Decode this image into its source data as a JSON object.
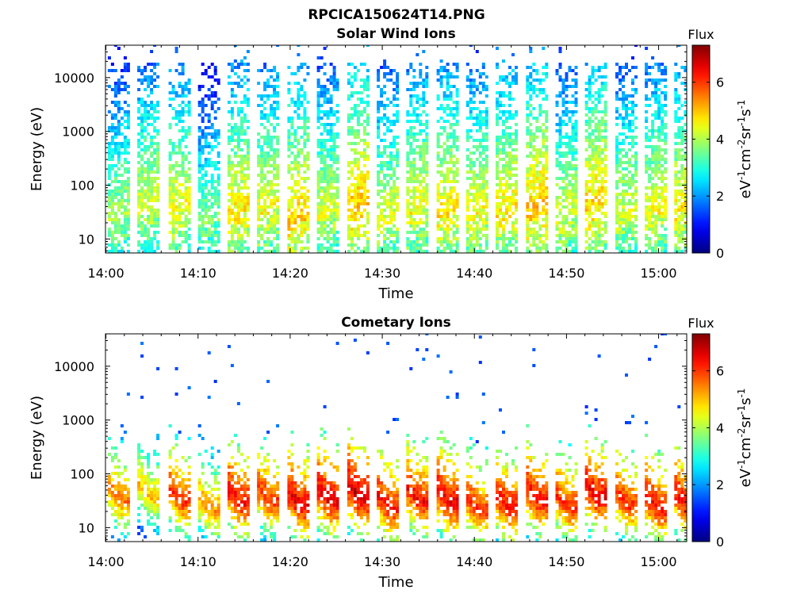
{
  "figure_title": "RPCICA150624T14.PNG",
  "chart_data": [
    {
      "type": "heatmap",
      "title": "Solar Wind Ions",
      "xlabel": "Time",
      "ylabel": "Energy (eV)",
      "x_range": [
        "14:00",
        "15:03"
      ],
      "x_ticks": [
        "14:00",
        "14:10",
        "14:20",
        "14:30",
        "14:40",
        "14:50",
        "15:00"
      ],
      "y_scale": "log",
      "y_range": [
        5.5,
        40000
      ],
      "y_ticks": [
        10,
        100,
        1000,
        10000
      ],
      "y_tick_labels": [
        "10",
        "100",
        "1000",
        "10000"
      ],
      "colorbar": {
        "title": "Flux",
        "label": "eV-1cm-2sr-1s-1",
        "range": [
          0,
          7.3
        ],
        "ticks": [
          0,
          2,
          4,
          6
        ],
        "colormap": "jet"
      },
      "scan_start_minutes": [
        0.2,
        3.4,
        6.8,
        10.0,
        13.2,
        16.4,
        19.7,
        22.9,
        26.2,
        29.4,
        32.6,
        35.9,
        39.1,
        42.3,
        45.6,
        48.8,
        52.0,
        55.3,
        58.5,
        61.7
      ],
      "scan_peaks": [
        {
          "time": "14:01",
          "energy_eV": 25,
          "flux": 4.5
        },
        {
          "time": "14:04",
          "energy_eV": 40,
          "flux": 4.8
        },
        {
          "time": "14:07",
          "energy_eV": 35,
          "flux": 5.0
        },
        {
          "time": "14:10",
          "energy_eV": 20,
          "flux": 4.2
        },
        {
          "time": "14:13",
          "energy_eV": 28,
          "flux": 5.2
        },
        {
          "time": "14:16",
          "energy_eV": 32,
          "flux": 5.0
        },
        {
          "time": "14:20",
          "energy_eV": 22,
          "flux": 5.4
        },
        {
          "time": "14:23",
          "energy_eV": 30,
          "flux": 4.8
        },
        {
          "time": "14:26",
          "energy_eV": 40,
          "flux": 5.5
        },
        {
          "time": "14:29",
          "energy_eV": 24,
          "flux": 4.8
        },
        {
          "time": "14:32",
          "energy_eV": 35,
          "flux": 5.0
        },
        {
          "time": "14:35",
          "energy_eV": 30,
          "flux": 5.2
        },
        {
          "time": "14:39",
          "energy_eV": 28,
          "flux": 5.0
        },
        {
          "time": "14:42",
          "energy_eV": 32,
          "flux": 5.2
        },
        {
          "time": "14:45",
          "energy_eV": 35,
          "flux": 5.5
        },
        {
          "time": "14:48",
          "energy_eV": 25,
          "flux": 4.8
        },
        {
          "time": "14:52",
          "energy_eV": 40,
          "flux": 5.4
        },
        {
          "time": "14:55",
          "energy_eV": 28,
          "flux": 4.8
        },
        {
          "time": "14:58",
          "energy_eV": 30,
          "flux": 5.0
        },
        {
          "time": "15:01",
          "energy_eV": 35,
          "flux": 5.2
        }
      ]
    },
    {
      "type": "heatmap",
      "title": "Cometary Ions",
      "xlabel": "Time",
      "ylabel": "Energy (eV)",
      "x_range": [
        "14:00",
        "15:03"
      ],
      "x_ticks": [
        "14:00",
        "14:10",
        "14:20",
        "14:30",
        "14:40",
        "14:50",
        "15:00"
      ],
      "y_scale": "log",
      "y_range": [
        5.5,
        40000
      ],
      "y_ticks": [
        10,
        100,
        1000,
        10000
      ],
      "y_tick_labels": [
        "10",
        "100",
        "1000",
        "10000"
      ],
      "colorbar": {
        "title": "Flux",
        "label": "eV-1cm-2sr-1s-1",
        "range": [
          0,
          7.3
        ],
        "ticks": [
          0,
          2,
          4,
          6
        ],
        "colormap": "jet"
      },
      "scan_start_minutes": [
        0.2,
        3.4,
        6.8,
        10.0,
        13.2,
        16.4,
        19.7,
        22.9,
        26.2,
        29.4,
        32.6,
        35.9,
        39.1,
        42.3,
        45.6,
        48.8,
        52.0,
        55.3,
        58.5,
        61.7
      ],
      "scan_peaks": [
        {
          "time": "14:01",
          "energy_eV": 30,
          "flux": 6.0
        },
        {
          "time": "14:04",
          "energy_eV": 35,
          "flux": 5.5
        },
        {
          "time": "14:07",
          "energy_eV": 30,
          "flux": 6.5
        },
        {
          "time": "14:10",
          "energy_eV": 20,
          "flux": 5.8
        },
        {
          "time": "14:13",
          "energy_eV": 28,
          "flux": 6.8
        },
        {
          "time": "14:16",
          "energy_eV": 30,
          "flux": 6.5
        },
        {
          "time": "14:20",
          "energy_eV": 25,
          "flux": 7.0
        },
        {
          "time": "14:23",
          "energy_eV": 30,
          "flux": 7.0
        },
        {
          "time": "14:26",
          "energy_eV": 35,
          "flux": 7.2
        },
        {
          "time": "14:29",
          "energy_eV": 22,
          "flux": 6.8
        },
        {
          "time": "14:32",
          "energy_eV": 30,
          "flux": 6.8
        },
        {
          "time": "14:35",
          "energy_eV": 28,
          "flux": 7.0
        },
        {
          "time": "14:39",
          "energy_eV": 20,
          "flux": 6.5
        },
        {
          "time": "14:42",
          "energy_eV": 22,
          "flux": 6.8
        },
        {
          "time": "14:45",
          "energy_eV": 30,
          "flux": 6.8
        },
        {
          "time": "14:48",
          "energy_eV": 22,
          "flux": 6.5
        },
        {
          "time": "14:52",
          "energy_eV": 35,
          "flux": 7.0
        },
        {
          "time": "14:55",
          "energy_eV": 25,
          "flux": 6.5
        },
        {
          "time": "14:58",
          "energy_eV": 22,
          "flux": 6.8
        },
        {
          "time": "15:01",
          "energy_eV": 25,
          "flux": 6.8
        }
      ]
    }
  ]
}
